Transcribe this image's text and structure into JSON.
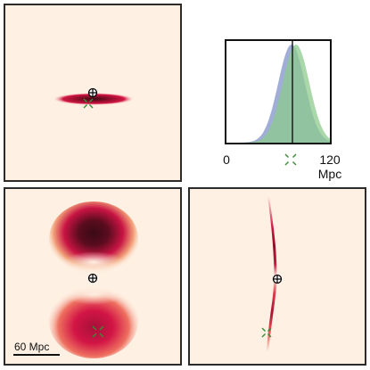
{
  "colors": {
    "panel_background": "#fef0e2",
    "density_dark": "#3a0a14",
    "density_mid": "#d21545",
    "hist_blue": "#8f9fcf",
    "hist_green": "#8ecb8e",
    "marker_observer": "#000000",
    "marker_source": "#3a8a3a"
  },
  "icons": {
    "observer": "circled-plus-icon",
    "source": "green-cross-icon"
  },
  "scale_bar": {
    "label": "60 Mpc",
    "value": 60,
    "unit": "Mpc"
  },
  "chart_data": [
    {
      "type": "heatmap",
      "panel": "top-left",
      "title": "",
      "description_only_in_shape": "thin horizontal elongated ellipse",
      "observer_marker": true,
      "source_marker": true
    },
    {
      "type": "area",
      "panel": "top-right",
      "title": "",
      "xlabel": "Mpc",
      "xlim": [
        0,
        120
      ],
      "tick_labels": [
        "0",
        "120"
      ],
      "series": [
        {
          "color": "#8f9fcf",
          "mean": 75,
          "sd": 15
        },
        {
          "color": "#8ecb8e",
          "mean": 80,
          "sd": 15
        }
      ],
      "vertical_line_x": 76,
      "source_marker_x": 76
    },
    {
      "type": "heatmap",
      "panel": "bottom-left",
      "title": "",
      "shape": "two lobes above and below observer",
      "observer_marker": true,
      "source_marker": true
    },
    {
      "type": "heatmap",
      "panel": "bottom-right",
      "title": "",
      "shape": "thin near-vertical streak through observer",
      "observer_marker": true,
      "source_marker": true
    }
  ]
}
